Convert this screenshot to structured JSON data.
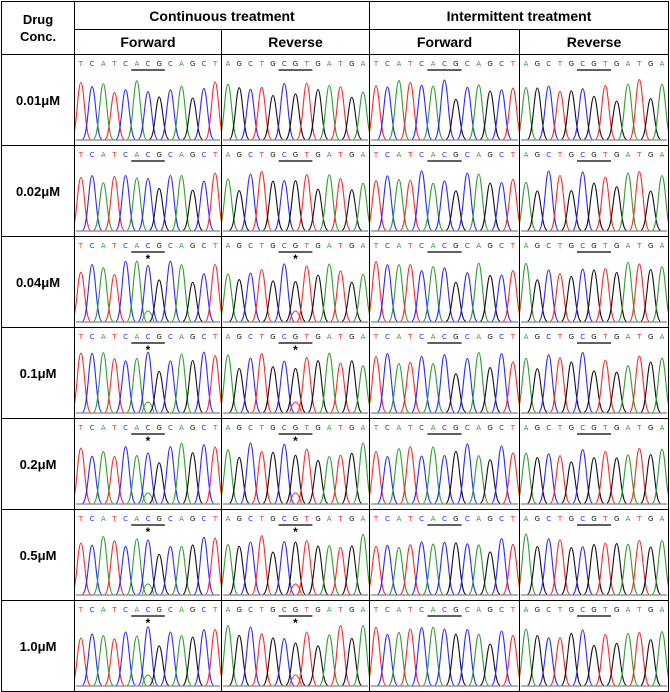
{
  "header": {
    "corner": "Drug\nConc.",
    "groups": [
      "Continuous treatment",
      "Intermittent treatment"
    ],
    "directions": [
      "Forward",
      "Reverse",
      "Forward",
      "Reverse"
    ]
  },
  "sequences": {
    "forward": "TCATCACGCAGCT",
    "reverse": "AGCTGCGTGATGA"
  },
  "rows": [
    {
      "conc": "0.01μM",
      "marks": [
        false,
        false,
        false,
        false
      ]
    },
    {
      "conc": "0.02μM",
      "marks": [
        false,
        false,
        false,
        false
      ]
    },
    {
      "conc": "0.04μM",
      "marks": [
        true,
        true,
        false,
        false
      ]
    },
    {
      "conc": "0.1μM",
      "marks": [
        true,
        true,
        false,
        false
      ]
    },
    {
      "conc": "0.2μM",
      "marks": [
        true,
        true,
        false,
        false
      ]
    },
    {
      "conc": "0.5μM",
      "marks": [
        true,
        true,
        false,
        false
      ]
    },
    {
      "conc": "1.0μM",
      "marks": [
        true,
        true,
        false,
        false
      ]
    }
  ],
  "mutation_marker": "*",
  "base_colors": {
    "A": "#2ea02e",
    "C": "#2b2bff",
    "G": "#111111",
    "T": "#ff2a2a"
  }
}
